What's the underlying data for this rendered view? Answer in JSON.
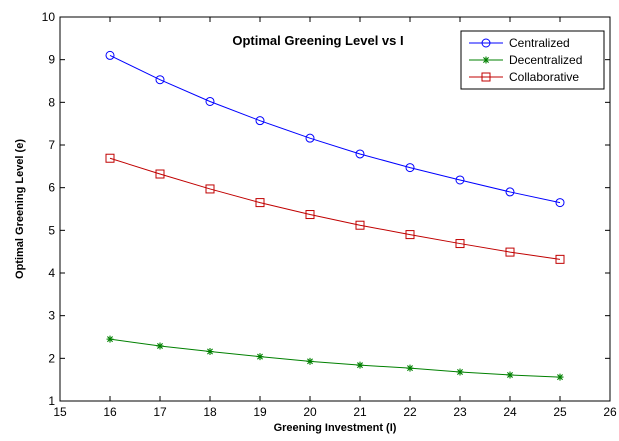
{
  "chart_data": {
    "type": "line",
    "title": "Optimal Greening Level vs I",
    "xlabel": "Greening Investment (I)",
    "ylabel": "Optimal Greening Level (e)",
    "xlim": [
      15,
      26
    ],
    "ylim": [
      1,
      10
    ],
    "x_ticks": [
      "15",
      "16",
      "17",
      "18",
      "19",
      "20",
      "21",
      "22",
      "23",
      "24",
      "25",
      "26"
    ],
    "y_ticks": [
      "1",
      "2",
      "3",
      "4",
      "5",
      "6",
      "7",
      "8",
      "9",
      "10"
    ],
    "x": [
      16,
      17,
      18,
      19,
      20,
      21,
      22,
      23,
      24,
      25
    ],
    "grid": false,
    "legend_position": "top-right",
    "series": [
      {
        "name": "Centralized",
        "color": "#0000ff",
        "marker": "circle",
        "values": [
          9.1,
          8.53,
          8.02,
          7.57,
          7.16,
          6.79,
          6.47,
          6.18,
          5.9,
          5.65
        ]
      },
      {
        "name": "Decentralized",
        "color": "#008000",
        "marker": "star",
        "values": [
          2.45,
          2.29,
          2.16,
          2.04,
          1.93,
          1.84,
          1.77,
          1.68,
          1.61,
          1.56
        ]
      },
      {
        "name": "Collaborative",
        "color": "#c00000",
        "marker": "square",
        "values": [
          6.69,
          6.32,
          5.97,
          5.65,
          5.37,
          5.12,
          4.9,
          4.69,
          4.49,
          4.32
        ]
      }
    ]
  }
}
